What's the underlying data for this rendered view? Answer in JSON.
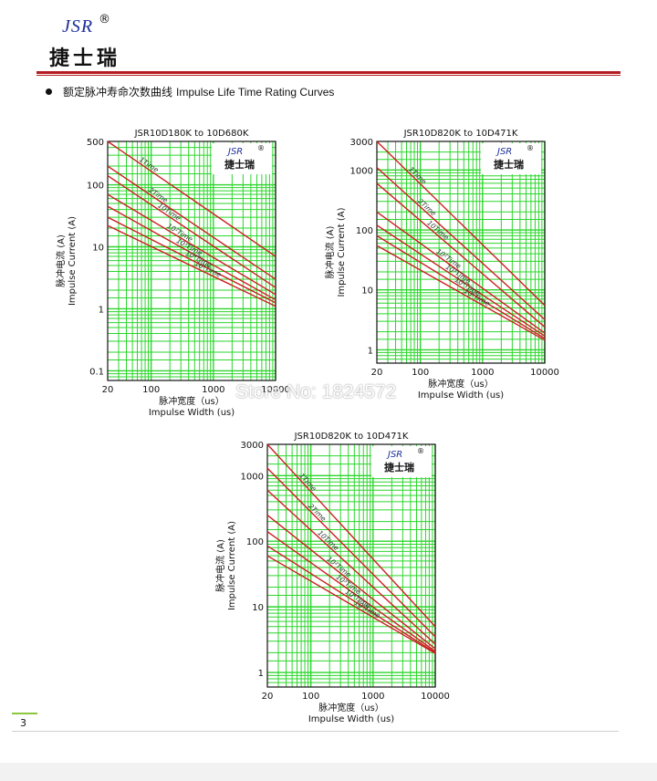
{
  "header": {
    "logo_en": "JSR",
    "logo_reg": "®",
    "logo_cn": "捷士瑞",
    "section_cn": "额定脉冲寿命次数曲线",
    "section_en": "Impulse Life Time Rating Curves"
  },
  "watermark": "Store No: 1824572",
  "page_number": "3",
  "colors": {
    "grid": "#2bd62b",
    "curve": "#cc1f1f",
    "rule": "#b31d22",
    "logo": "#1d2f9a"
  },
  "chart_data": [
    {
      "type": "line",
      "title": "JSR10D180K to 10D680K",
      "logo_en": "JSR",
      "logo_reg": "®",
      "logo_cn": "捷士瑞",
      "xlabel_cn": "脉冲宽度（us）",
      "xlabel_en": "Impulse Width (us)",
      "ylabel_cn": "脉冲电流 (A)",
      "ylabel_en": "Impulse Current (A)",
      "x_scale": "log",
      "y_scale": "log",
      "xlim": [
        20,
        10000
      ],
      "ylim": [
        0.07,
        500
      ],
      "x_ticks": [
        {
          "v": 20,
          "label": "20"
        },
        {
          "v": 100,
          "label": "100"
        },
        {
          "v": 1000,
          "label": "1000"
        },
        {
          "v": 10000,
          "label": "10000"
        }
      ],
      "y_ticks": [
        {
          "v": 0.1,
          "label": "0.1"
        },
        {
          "v": 1,
          "label": "1"
        },
        {
          "v": 10,
          "label": "10"
        },
        {
          "v": 100,
          "label": "100"
        },
        {
          "v": 500,
          "label": "500"
        }
      ],
      "series": [
        {
          "name": "1Time",
          "x": [
            20,
            10000
          ],
          "y": [
            500,
            7
          ]
        },
        {
          "name": "2Time",
          "x": [
            20,
            10000
          ],
          "y": [
            200,
            3
          ]
        },
        {
          "name": "10Time",
          "x": [
            20,
            10000
          ],
          "y": [
            140,
            2.2
          ]
        },
        {
          "name": "10²Time",
          "x": [
            20,
            10000
          ],
          "y": [
            70,
            1.7
          ]
        },
        {
          "name": "10³Time",
          "x": [
            20,
            10000
          ],
          "y": [
            45,
            1.4
          ]
        },
        {
          "name": "10⁴Time",
          "x": [
            20,
            10000
          ],
          "y": [
            30,
            1.25
          ]
        },
        {
          "name": "10⁵Time",
          "x": [
            20,
            10000
          ],
          "y": [
            22,
            1.1
          ]
        }
      ]
    },
    {
      "type": "line",
      "title": "JSR10D820K to 10D471K",
      "logo_en": "JSR",
      "logo_reg": "®",
      "logo_cn": "捷士瑞",
      "xlabel_cn": "脉冲宽度（us）",
      "xlabel_en": "Impulse Width (us)",
      "ylabel_cn": "脉冲电流 (A)",
      "ylabel_en": "Impulse Current (A)",
      "x_scale": "log",
      "y_scale": "log",
      "xlim": [
        20,
        10000
      ],
      "ylim": [
        0.6,
        3000
      ],
      "x_ticks": [
        {
          "v": 20,
          "label": "20"
        },
        {
          "v": 100,
          "label": "100"
        },
        {
          "v": 1000,
          "label": "1000"
        },
        {
          "v": 10000,
          "label": "10000"
        }
      ],
      "y_ticks": [
        {
          "v": 1,
          "label": "1"
        },
        {
          "v": 10,
          "label": "10"
        },
        {
          "v": 100,
          "label": "100"
        },
        {
          "v": 1000,
          "label": "1000"
        },
        {
          "v": 3000,
          "label": "3000"
        }
      ],
      "series": [
        {
          "name": "1Time",
          "x": [
            20,
            10000
          ],
          "y": [
            3000,
            5.5
          ]
        },
        {
          "name": "2Time",
          "x": [
            20,
            10000
          ],
          "y": [
            1100,
            3.2
          ]
        },
        {
          "name": "10Time",
          "x": [
            20,
            10000
          ],
          "y": [
            600,
            2.4
          ]
        },
        {
          "name": "10²Time",
          "x": [
            20,
            10000
          ],
          "y": [
            200,
            1.9
          ]
        },
        {
          "name": "10³Time",
          "x": [
            20,
            10000
          ],
          "y": [
            120,
            1.7
          ]
        },
        {
          "name": "10⁴Time",
          "x": [
            20,
            10000
          ],
          "y": [
            80,
            1.55
          ]
        },
        {
          "name": "10⁵Time",
          "x": [
            20,
            10000
          ],
          "y": [
            55,
            1.45
          ]
        }
      ]
    },
    {
      "type": "line",
      "title": "JSR10D820K to 10D471K",
      "logo_en": "JSR",
      "logo_reg": "®",
      "logo_cn": "捷士瑞",
      "xlabel_cn": "脉冲宽度（us）",
      "xlabel_en": "Impulse Width (us)",
      "ylabel_cn": "脉冲电流 (A)",
      "ylabel_en": "Impulse Current (A)",
      "x_scale": "log",
      "y_scale": "log",
      "xlim": [
        20,
        10000
      ],
      "ylim": [
        0.6,
        3000
      ],
      "x_ticks": [
        {
          "v": 20,
          "label": "20"
        },
        {
          "v": 100,
          "label": "100"
        },
        {
          "v": 1000,
          "label": "1000"
        },
        {
          "v": 10000,
          "label": "10000"
        }
      ],
      "y_ticks": [
        {
          "v": 1,
          "label": "1"
        },
        {
          "v": 10,
          "label": "10"
        },
        {
          "v": 100,
          "label": "100"
        },
        {
          "v": 1000,
          "label": "1000"
        },
        {
          "v": 3000,
          "label": "3000"
        }
      ],
      "series": [
        {
          "name": "1Time",
          "x": [
            20,
            10000
          ],
          "y": [
            3000,
            5
          ]
        },
        {
          "name": "2Time",
          "x": [
            20,
            10000
          ],
          "y": [
            1300,
            3.5
          ]
        },
        {
          "name": "10Time",
          "x": [
            20,
            10000
          ],
          "y": [
            600,
            2.7
          ]
        },
        {
          "name": "10²Time",
          "x": [
            20,
            10000
          ],
          "y": [
            250,
            2.3
          ]
        },
        {
          "name": "10³Time",
          "x": [
            20,
            10000
          ],
          "y": [
            140,
            2.1
          ]
        },
        {
          "name": "10⁴Time",
          "x": [
            20,
            10000
          ],
          "y": [
            85,
            2.0
          ]
        },
        {
          "name": "10⁵Time",
          "x": [
            20,
            10000
          ],
          "y": [
            60,
            1.95
          ]
        }
      ]
    }
  ]
}
